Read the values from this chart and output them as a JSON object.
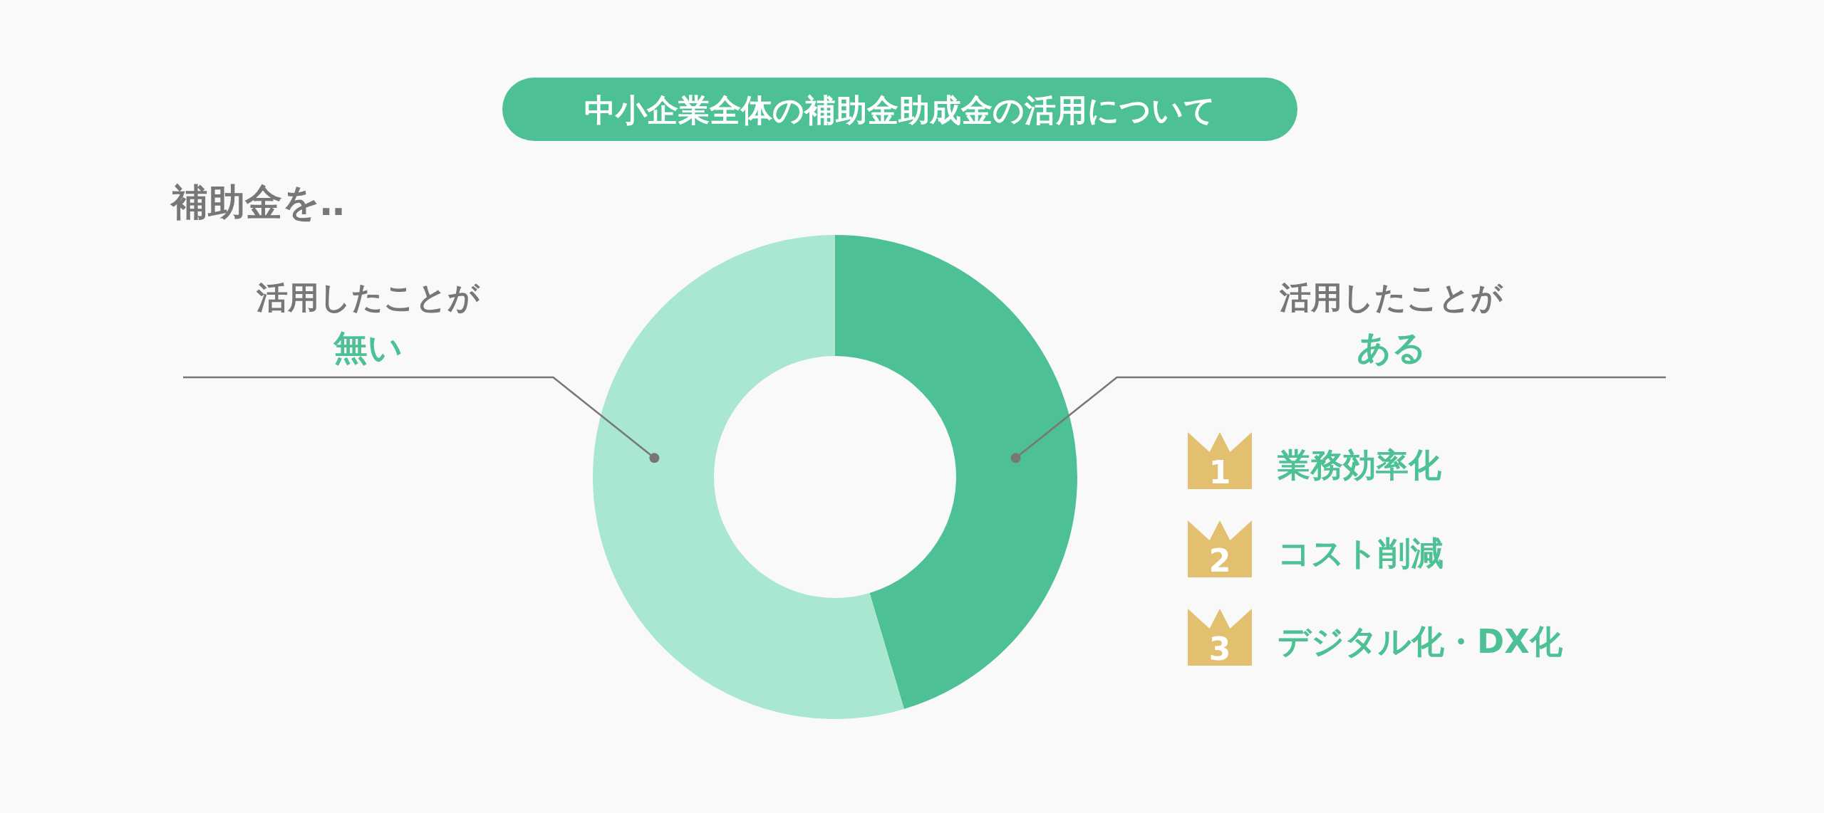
{
  "chart_data": {
    "type": "donut",
    "title": "中小企業全体の補助金助成金の活用について",
    "subtitle": "補助金を‥",
    "categories": [
      "活用したことがある",
      "活用したことが無い"
    ],
    "values": [
      45.4,
      54.6
    ],
    "colors": [
      "#4dc195",
      "#a9e7d0"
    ],
    "annotations": [
      "1",
      "業務効率化",
      "2",
      "コスト削減",
      "3",
      "デジタル化・DX化"
    ]
  }
}
